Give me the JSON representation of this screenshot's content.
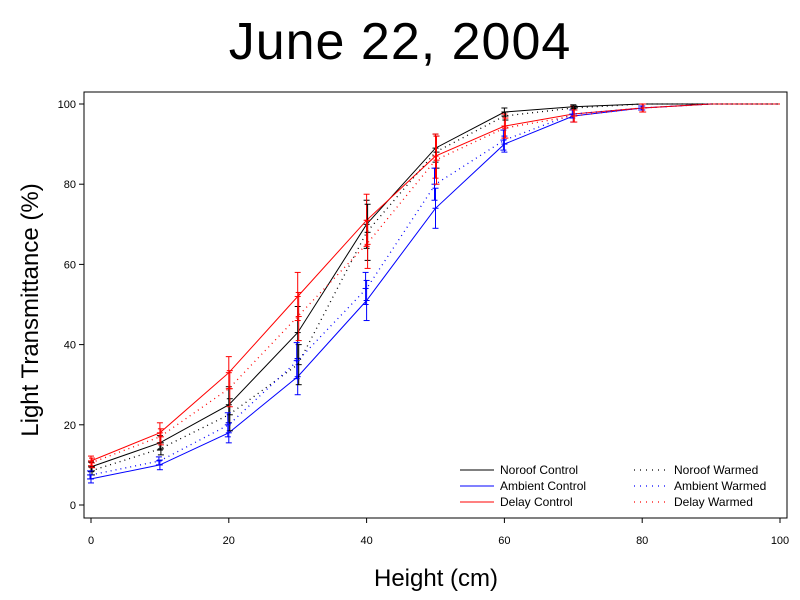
{
  "chart_data": {
    "type": "line",
    "title": "June 22, 2004",
    "xlabel": "Height (cm)",
    "ylabel": "Light Transmittance (%)",
    "xlim": [
      0,
      100
    ],
    "ylim": [
      0,
      100
    ],
    "xticks": [
      0,
      20,
      40,
      60,
      80,
      100
    ],
    "yticks": [
      0,
      20,
      40,
      60,
      80,
      100
    ],
    "grid": false,
    "legend_position": "bottom-right",
    "x": [
      0,
      10,
      20,
      30,
      40,
      50,
      60,
      70,
      80,
      90,
      100
    ],
    "series": [
      {
        "name": "Noroof Control",
        "color": "#000000",
        "dash": "solid",
        "values": [
          9.5,
          15.5,
          25,
          43,
          70,
          89,
          98,
          99.3,
          100,
          100,
          100
        ],
        "errors": [
          1.2,
          1.8,
          4.5,
          6.5,
          6,
          3.5,
          1,
          0.5,
          0,
          0,
          0
        ]
      },
      {
        "name": "Ambient Control",
        "color": "#0000ff",
        "dash": "solid",
        "values": [
          6.5,
          10,
          18,
          32,
          51,
          74,
          90,
          97,
          99,
          100,
          100
        ],
        "errors": [
          1,
          1.2,
          2.5,
          4.5,
          5,
          5,
          2,
          1.5,
          0.5,
          0,
          0
        ]
      },
      {
        "name": "Delay Control",
        "color": "#ff0000",
        "dash": "solid",
        "values": [
          11,
          18,
          33,
          52,
          71,
          87,
          94.5,
          97.5,
          99,
          100,
          100
        ],
        "errors": [
          1.2,
          2.5,
          4,
          6,
          6.5,
          5.5,
          3,
          2,
          1,
          0,
          0
        ]
      },
      {
        "name": "Noroof Warmed",
        "color": "#000000",
        "dash": "dotted",
        "values": [
          8.5,
          14,
          22.5,
          35,
          68,
          88,
          97,
          99,
          100,
          100,
          100
        ],
        "errors": [
          1,
          1.5,
          4,
          5,
          7,
          4,
          1,
          0.5,
          0,
          0,
          0
        ]
      },
      {
        "name": "Ambient Warmed",
        "color": "#0000ff",
        "dash": "dotted",
        "values": [
          7.5,
          11,
          20,
          36,
          54,
          80,
          91,
          97.5,
          99,
          100,
          100
        ],
        "errors": [
          1,
          1,
          3,
          4.5,
          4,
          4,
          2.5,
          1,
          0.5,
          0,
          0
        ]
      },
      {
        "name": "Delay Warmed",
        "color": "#ff0000",
        "dash": "dotted",
        "values": [
          10.5,
          17,
          29,
          47,
          65,
          86,
          94,
          97,
          99,
          100,
          100
        ],
        "errors": [
          1.2,
          2,
          4.5,
          6,
          6,
          6,
          2.5,
          1.5,
          1,
          0,
          0
        ]
      }
    ]
  }
}
